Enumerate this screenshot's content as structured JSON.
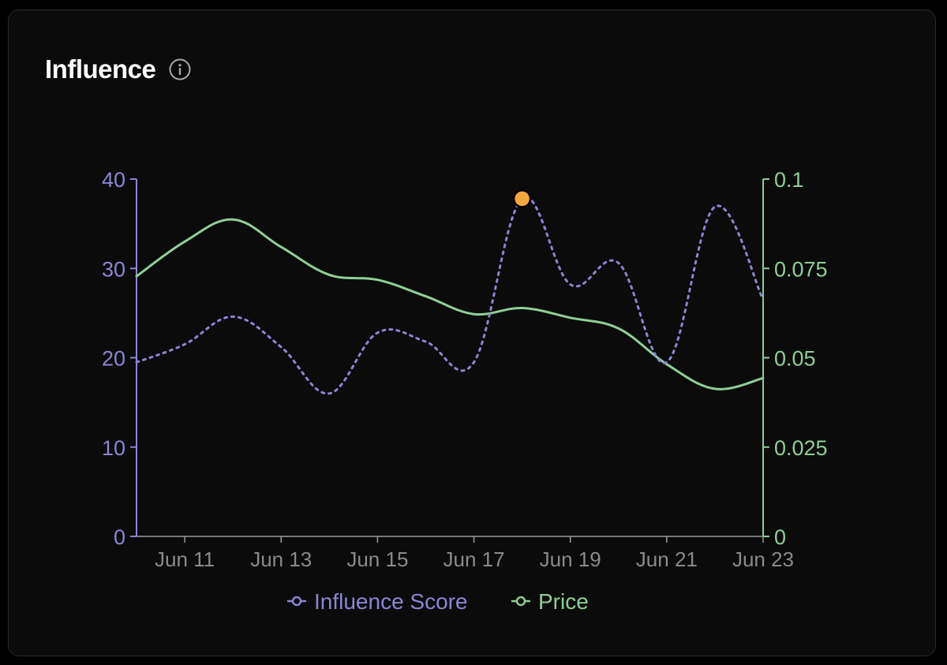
{
  "card": {
    "title": "Influence"
  },
  "colors": {
    "background": "#0b0b0b",
    "influence": "#8b85d4",
    "price": "#8fcf95",
    "highlight": "#f5a93c",
    "x_tick_text": "#8a8a8a",
    "x_axis": "#9a9a9a"
  },
  "icons": {
    "info": "info-circle-icon"
  },
  "chart_data": {
    "type": "line",
    "x": [
      "Jun 10",
      "Jun 11",
      "Jun 12",
      "Jun 13",
      "Jun 14",
      "Jun 15",
      "Jun 16",
      "Jun 17",
      "Jun 18",
      "Jun 19",
      "Jun 20",
      "Jun 21",
      "Jun 22",
      "Jun 23"
    ],
    "x_tick_labels": [
      "Jun 11",
      "Jun 13",
      "Jun 15",
      "Jun 17",
      "Jun 19",
      "Jun 21",
      "Jun 23"
    ],
    "series": [
      {
        "name": "Influence Score",
        "axis": "left",
        "style": "dotted",
        "values": [
          19.5,
          21.5,
          24.6,
          21.2,
          16.0,
          22.8,
          21.8,
          19.5,
          37.8,
          28.2,
          30.6,
          19.5,
          36.9,
          26.5
        ]
      },
      {
        "name": "Price",
        "axis": "right",
        "style": "solid",
        "values": [
          0.0728,
          0.0825,
          0.0887,
          0.081,
          0.0732,
          0.0718,
          0.0672,
          0.0622,
          0.0639,
          0.0612,
          0.0582,
          0.0482,
          0.0413,
          0.0443
        ]
      }
    ],
    "y_left": {
      "ticks": [
        0,
        10,
        20,
        30,
        40
      ],
      "ylim": [
        0,
        40
      ]
    },
    "y_right": {
      "ticks": [
        "0",
        "0.025",
        "0.05",
        "0.075",
        "0.1"
      ],
      "ylim": [
        0,
        0.1
      ]
    },
    "highlight": {
      "series": "Influence Score",
      "x": "Jun 18",
      "value": 37.8
    },
    "legend": {
      "placement": "bottom-center",
      "items": [
        "Influence Score",
        "Price"
      ]
    },
    "grid": false
  }
}
